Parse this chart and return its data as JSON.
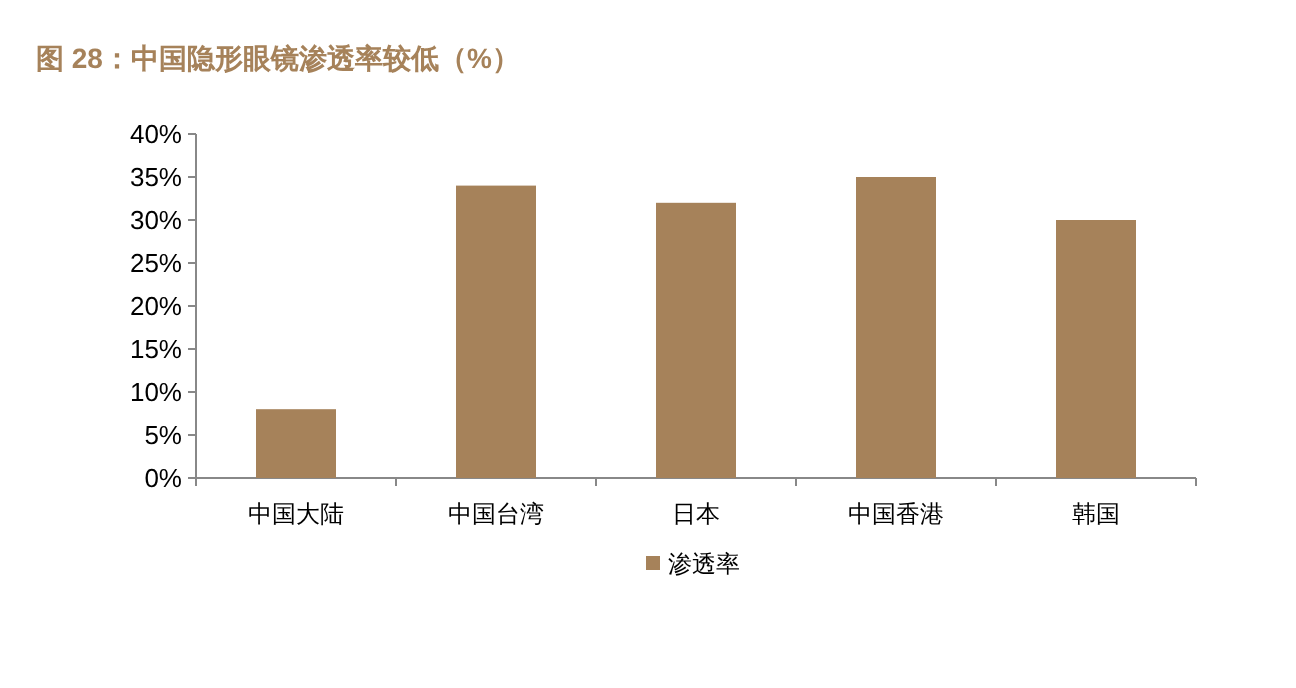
{
  "chart_data": {
    "type": "bar",
    "title": "图 28：中国隐形眼镜渗透率较低（%）",
    "categories": [
      "中国大陆",
      "中国台湾",
      "日本",
      "中国香港",
      "韩国"
    ],
    "series": [
      {
        "name": "渗透率",
        "color": "#a6825a",
        "values": [
          8,
          34,
          32,
          35,
          30
        ]
      }
    ],
    "ylim": [
      0,
      40
    ],
    "yticks": [
      {
        "value": 0,
        "label": "0%"
      },
      {
        "value": 5,
        "label": "5%"
      },
      {
        "value": 10,
        "label": "10%"
      },
      {
        "value": 15,
        "label": "15%"
      },
      {
        "value": 20,
        "label": "20%"
      },
      {
        "value": 25,
        "label": "25%"
      },
      {
        "value": 30,
        "label": "30%"
      },
      {
        "value": 35,
        "label": "35%"
      },
      {
        "value": 40,
        "label": "40%"
      }
    ],
    "grid": false,
    "legend": "bottom"
  }
}
